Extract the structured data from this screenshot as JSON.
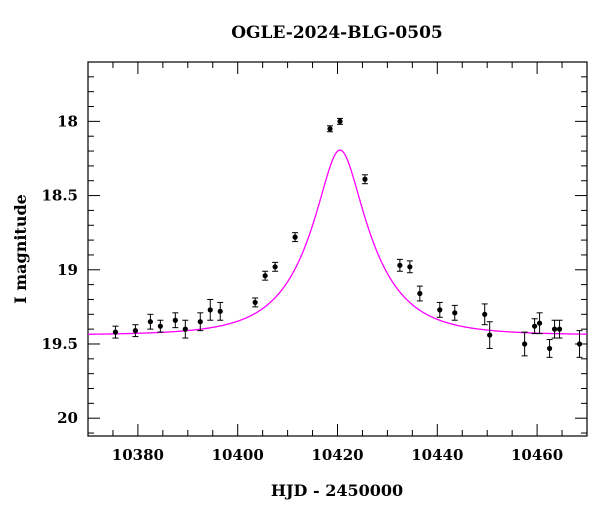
{
  "chart_data": {
    "type": "scatter",
    "title": "OGLE-2024-BLG-0505",
    "xlabel": "HJD - 2450000",
    "ylabel": "I magnitude",
    "xlim": [
      10370,
      10470
    ],
    "ylim": [
      20.12,
      17.6
    ],
    "y_inverted": true,
    "x_ticks": [
      10380,
      10400,
      10420,
      10440,
      10460
    ],
    "y_ticks": [
      18,
      18.5,
      19,
      19.5,
      20
    ],
    "x_tick_labels": [
      "10380",
      "10400",
      "10420",
      "10440",
      "10460"
    ],
    "y_tick_labels": [
      "18",
      "18.5",
      "19",
      "19.5",
      "20"
    ],
    "grid": false,
    "colors": {
      "data": "#000000",
      "model": "#ff00ff"
    },
    "series": [
      {
        "type": "scatter",
        "x": [
          10375.5,
          10379.5,
          10382.5,
          10384.5,
          10387.5,
          10389.5,
          10392.5,
          10394.5,
          10396.5,
          10403.5,
          10405.5,
          10407.5,
          10411.5,
          10418.5,
          10420.5,
          10425.5,
          10432.5,
          10434.5,
          10436.5,
          10440.5,
          10443.5,
          10449.5,
          10450.5,
          10457.5,
          10459.5,
          10460.5,
          10462.5,
          10463.5,
          10464.5,
          10468.5
        ],
        "y": [
          19.42,
          19.41,
          19.35,
          19.38,
          19.34,
          19.4,
          19.35,
          19.27,
          19.28,
          19.22,
          19.04,
          18.98,
          18.78,
          18.05,
          18.0,
          18.39,
          18.97,
          18.98,
          19.16,
          19.27,
          19.29,
          19.3,
          19.44,
          19.5,
          19.38,
          19.36,
          19.53,
          19.4,
          19.4,
          19.5
        ],
        "yerr": [
          0.04,
          0.04,
          0.05,
          0.04,
          0.05,
          0.06,
          0.06,
          0.07,
          0.06,
          0.03,
          0.03,
          0.03,
          0.03,
          0.02,
          0.02,
          0.03,
          0.04,
          0.04,
          0.05,
          0.05,
          0.05,
          0.07,
          0.09,
          0.08,
          0.05,
          0.07,
          0.06,
          0.06,
          0.06,
          0.09
        ]
      },
      {
        "type": "line",
        "model": "point-lens microlensing fit",
        "t0": 10420.5,
        "tE": 12,
        "u0": 0.33,
        "baseline": 19.44
      }
    ]
  }
}
